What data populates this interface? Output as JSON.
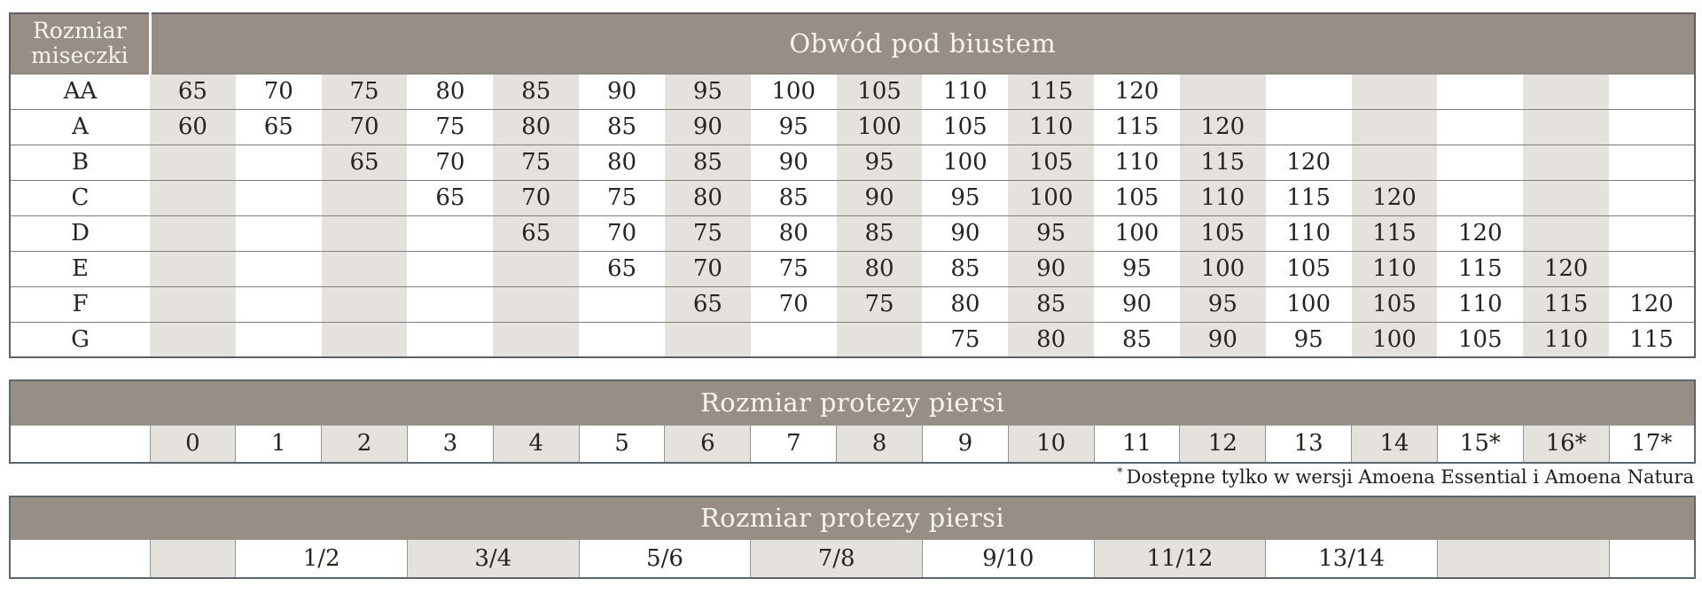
{
  "colors": {
    "header_bg": "#978e85",
    "header_text": "#f7f4ef",
    "stripe_beige": "#e5e1dd",
    "cell_white": "#ffffff",
    "text": "#26241f",
    "row_line": "#7e7e7c",
    "outer_border": "#5e6065"
  },
  "footnote": {
    "marker": "*",
    "text": "Dostępne tylko w wersji Amoena Essential i Amoena Natura"
  },
  "chart_data": [
    {
      "type": "table",
      "title": "Obwód pod biustem",
      "corner_header": "Rozmiar miseczki",
      "columns": 18,
      "rows": [
        {
          "label": "AA",
          "start": 1,
          "values": [
            65,
            70,
            75,
            80,
            85,
            90,
            95,
            100,
            105,
            110,
            115,
            120
          ]
        },
        {
          "label": "A",
          "start": 1,
          "values": [
            60,
            65,
            70,
            75,
            80,
            85,
            90,
            95,
            100,
            105,
            110,
            115,
            120
          ]
        },
        {
          "label": "B",
          "start": 3,
          "values": [
            65,
            70,
            75,
            80,
            85,
            90,
            95,
            100,
            105,
            110,
            115,
            120
          ]
        },
        {
          "label": "C",
          "start": 4,
          "values": [
            65,
            70,
            75,
            80,
            85,
            90,
            95,
            100,
            105,
            110,
            115,
            120
          ]
        },
        {
          "label": "D",
          "start": 5,
          "values": [
            65,
            70,
            75,
            80,
            85,
            90,
            95,
            100,
            105,
            110,
            115,
            120
          ]
        },
        {
          "label": "E",
          "start": 6,
          "values": [
            65,
            70,
            75,
            80,
            85,
            90,
            95,
            100,
            105,
            110,
            115,
            120
          ]
        },
        {
          "label": "F",
          "start": 7,
          "values": [
            65,
            70,
            75,
            80,
            85,
            90,
            95,
            100,
            105,
            110,
            115,
            120
          ]
        },
        {
          "label": "G",
          "start": 10,
          "values": [
            75,
            80,
            85,
            90,
            95,
            100,
            105,
            110,
            115
          ]
        }
      ]
    },
    {
      "type": "table",
      "title": "Rozmiar protezy piersi",
      "values": [
        "0",
        "1",
        "2",
        "3",
        "4",
        "5",
        "6",
        "7",
        "8",
        "9",
        "10",
        "11",
        "12",
        "13",
        "14",
        "15*",
        "16*",
        "17*"
      ]
    },
    {
      "type": "table",
      "title": "Rozmiar protezy piersi",
      "cells": [
        {
          "text": "",
          "span": 1
        },
        {
          "text": "1/2",
          "span": 2
        },
        {
          "text": "3/4",
          "span": 2
        },
        {
          "text": "5/6",
          "span": 2
        },
        {
          "text": "7/8",
          "span": 2
        },
        {
          "text": "9/10",
          "span": 2
        },
        {
          "text": "11/12",
          "span": 2
        },
        {
          "text": "13/14",
          "span": 2
        },
        {
          "text": "",
          "span": 2
        },
        {
          "text": "",
          "span": 1
        }
      ]
    }
  ]
}
